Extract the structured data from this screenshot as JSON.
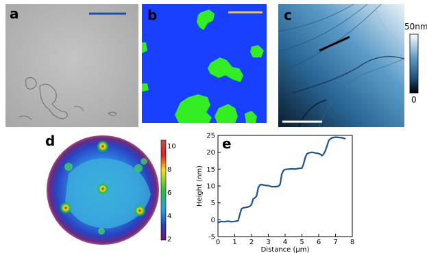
{
  "figure": {
    "panel_labels": {
      "a": "a",
      "b": "b",
      "c": "c",
      "d": "d",
      "e": "e"
    },
    "colors": {
      "scale_bar_a": "#1f4fa8",
      "scale_bar_b": "#e8c840",
      "panel_b_background": "#1a40ff",
      "panel_b_islands": "#33ee22",
      "afm_line": "#000000",
      "profile_line": "#1a4f91"
    },
    "colorbar_c": {
      "top_label": "50nm",
      "bottom_label": "0"
    },
    "colorbar_d": {
      "tick_labels": [
        "10",
        "8",
        "6",
        "4",
        "2"
      ]
    }
  },
  "chart_data": {
    "type": "line",
    "title": "",
    "xlabel": "Distance (μm)",
    "ylabel": "Height (nm)",
    "xlim": [
      0,
      8
    ],
    "ylim": [
      -5,
      25
    ],
    "xticks": [
      "0",
      "1",
      "2",
      "3",
      "4",
      "5",
      "6",
      "7",
      "8"
    ],
    "yticks": [
      "-5",
      "0",
      "5",
      "10",
      "15",
      "20",
      "25"
    ],
    "series": [
      {
        "x": [
          0.0,
          0.2,
          0.4,
          0.6,
          0.8,
          1.0,
          1.2,
          1.3,
          1.4,
          1.5,
          1.6,
          1.8,
          1.9,
          2.0,
          2.1,
          2.2,
          2.3,
          2.4,
          2.5,
          2.6,
          2.8,
          3.0,
          3.2,
          3.4,
          3.6,
          3.7,
          3.8,
          3.9,
          4.0,
          4.2,
          4.4,
          4.6,
          4.8,
          5.0,
          5.1,
          5.2,
          5.3,
          5.4,
          5.6,
          5.8,
          6.0,
          6.1,
          6.2,
          6.3,
          6.4,
          6.5,
          6.6,
          6.7,
          6.8,
          6.9,
          7.0,
          7.2,
          7.4,
          7.6
        ],
        "y": [
          -0.8,
          -0.5,
          -0.6,
          -0.4,
          -0.6,
          -0.5,
          -0.3,
          1.5,
          3.2,
          3.5,
          3.6,
          3.8,
          4.0,
          4.5,
          6.2,
          6.5,
          7.0,
          9.5,
          10.3,
          10.4,
          10.2,
          10.1,
          9.8,
          9.8,
          9.9,
          10.5,
          13.5,
          14.6,
          14.9,
          15.0,
          15.1,
          15.0,
          15.2,
          15.3,
          16.5,
          18.5,
          19.5,
          19.8,
          20.0,
          19.8,
          19.6,
          19.4,
          19.0,
          19.5,
          20.5,
          22.0,
          23.5,
          24.0,
          24.3,
          24.4,
          24.5,
          24.4,
          24.3,
          24.0
        ]
      }
    ]
  }
}
